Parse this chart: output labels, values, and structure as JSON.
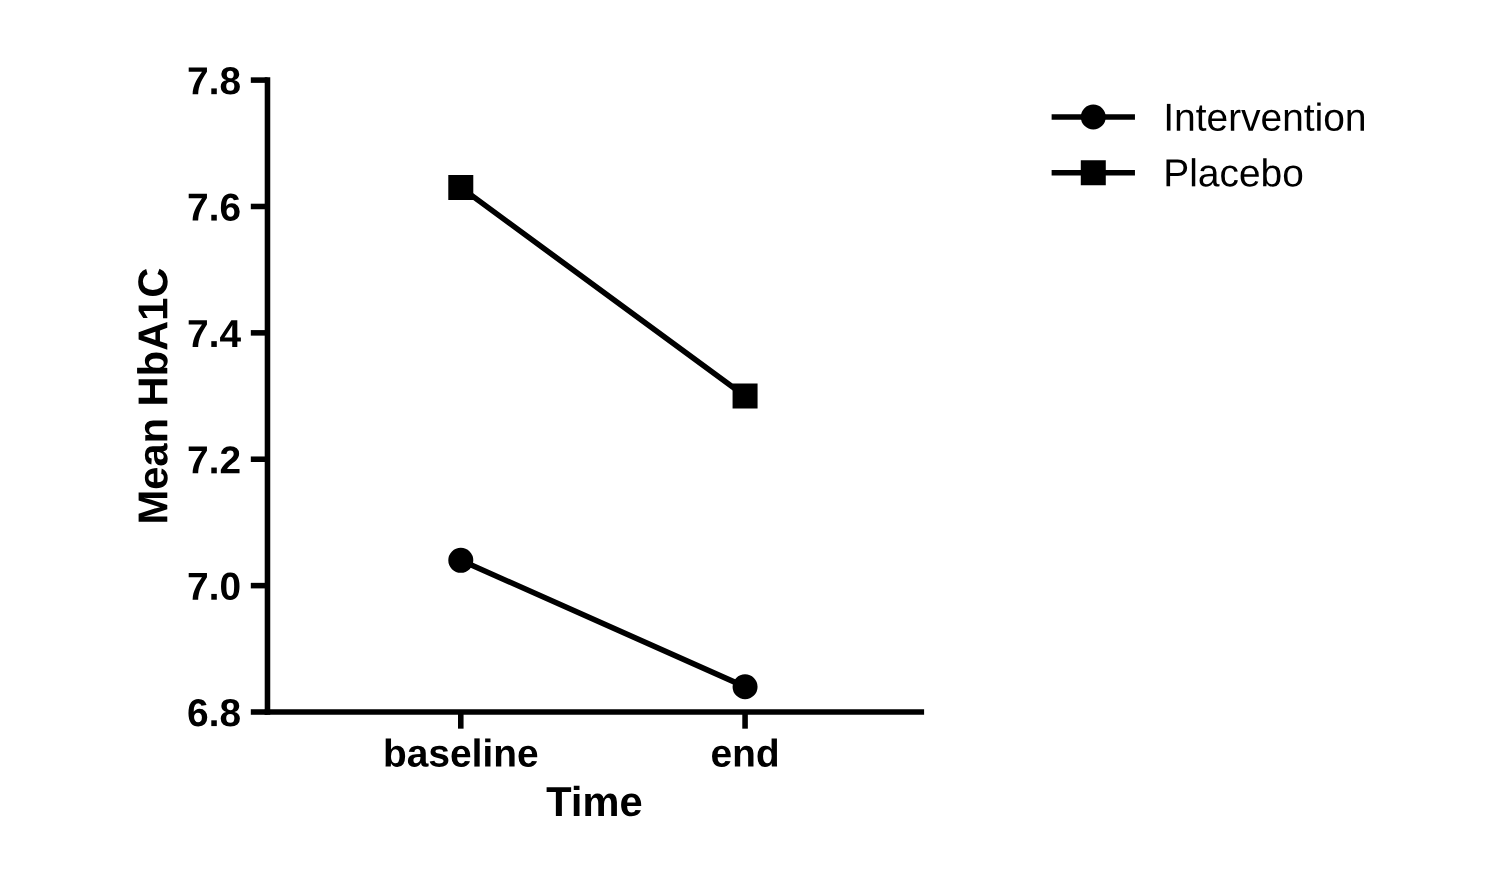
{
  "chart_data": {
    "type": "line",
    "xlabel": "Time",
    "ylabel": "Mean HbA1C",
    "categories": [
      "baseline",
      "end"
    ],
    "series": [
      {
        "name": "Intervention",
        "color": "#000000",
        "marker": "circle",
        "values": [
          7.04,
          6.84
        ]
      },
      {
        "name": "Placebo",
        "color": "#000000",
        "marker": "square",
        "values": [
          7.63,
          7.3
        ]
      }
    ],
    "ylim": [
      6.8,
      7.8
    ],
    "yticks": [
      {
        "value": 6.8,
        "label": "6.8"
      },
      {
        "value": 7.0,
        "label": "7.0"
      },
      {
        "value": 7.2,
        "label": "7.2"
      },
      {
        "value": 7.4,
        "label": "7.4"
      },
      {
        "value": 7.6,
        "label": "7.6"
      },
      {
        "value": 7.8,
        "label": "7.8"
      }
    ],
    "grid": false,
    "legend": "top right",
    "line_style": "solid"
  }
}
